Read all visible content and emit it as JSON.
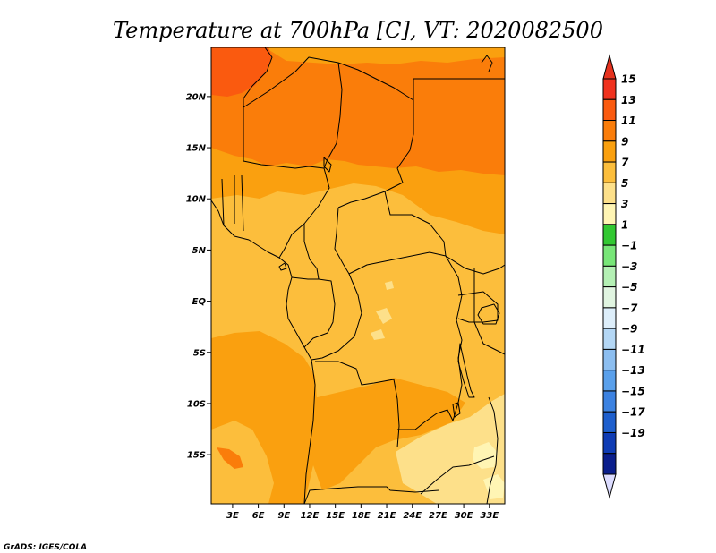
{
  "chart_data": {
    "type": "heatmap",
    "title": "Temperature at 700hPa [C], VT: 2020082500",
    "credit": "GrADS: IGES/COLA",
    "units": "C",
    "x_ticks": [
      {
        "lon": 3,
        "label": "3E"
      },
      {
        "lon": 6,
        "label": "6E"
      },
      {
        "lon": 9,
        "label": "9E"
      },
      {
        "lon": 12,
        "label": "12E"
      },
      {
        "lon": 15,
        "label": "15E"
      },
      {
        "lon": 18,
        "label": "18E"
      },
      {
        "lon": 21,
        "label": "21E"
      },
      {
        "lon": 24,
        "label": "24E"
      },
      {
        "lon": 27,
        "label": "27E"
      },
      {
        "lon": 30,
        "label": "30E"
      },
      {
        "lon": 33,
        "label": "33E"
      }
    ],
    "y_ticks": [
      {
        "lat": 20,
        "label": "20N"
      },
      {
        "lat": 15,
        "label": "15N"
      },
      {
        "lat": 10,
        "label": "10N"
      },
      {
        "lat": 5,
        "label": "5N"
      },
      {
        "lat": 0,
        "label": "EQ"
      },
      {
        "lat": -5,
        "label": "5S"
      },
      {
        "lat": -10,
        "label": "10S"
      },
      {
        "lat": -15,
        "label": "15S"
      }
    ],
    "xlim": [
      0.5,
      34.8
    ],
    "ylim": [
      -19.8,
      24.8
    ],
    "colorbar": {
      "levels": [
        15,
        13,
        11,
        9,
        7,
        5,
        3,
        1,
        -1,
        -3,
        -5,
        -7,
        -9,
        -11,
        -13,
        -15,
        -17,
        -19
      ],
      "labels": [
        "15",
        "13",
        "11",
        "9",
        "7",
        "5",
        "3",
        "1",
        "−1",
        "−3",
        "−5",
        "−7",
        "−9",
        "−11",
        "−13",
        "−15",
        "−17",
        "−19"
      ],
      "colors": [
        "#f0321e",
        "#fa5a0f",
        "#fa7d0a",
        "#faa00f",
        "#fcbe3c",
        "#fde08a",
        "#fff5b4",
        "#32c832",
        "#78e678",
        "#b4f0b4",
        "#e1f5e1",
        "#ddeefa",
        "#b4d7f5",
        "#8cbef0",
        "#5aa0eb",
        "#3c82e1",
        "#1e5fcd",
        "#0f3cb4",
        "#0a1e8c"
      ],
      "top_arrow_color": "#e6321e",
      "bottom_arrow_color": "#dcdcff"
    },
    "regions": [
      {
        "band": "11 to 13",
        "color": "#fa5a0f",
        "area": "northwest corner near 19-24N, 1-6E"
      },
      {
        "band": "9 to 11",
        "color": "#fa7d0a",
        "area": "Sahara band 13-22N"
      },
      {
        "band": "7 to 9",
        "color": "#faa00f",
        "area": "north edge, Sahel, Atlantic south of equator"
      },
      {
        "band": "5 to 7",
        "color": "#fcbe3c",
        "area": "equatorial belt and interior"
      },
      {
        "band": "3 to 5",
        "color": "#fde08a",
        "area": "southeast interior 13-20S"
      },
      {
        "band": "1 to 3",
        "color": "#fff5b4",
        "area": "small patches far southeast"
      }
    ]
  }
}
